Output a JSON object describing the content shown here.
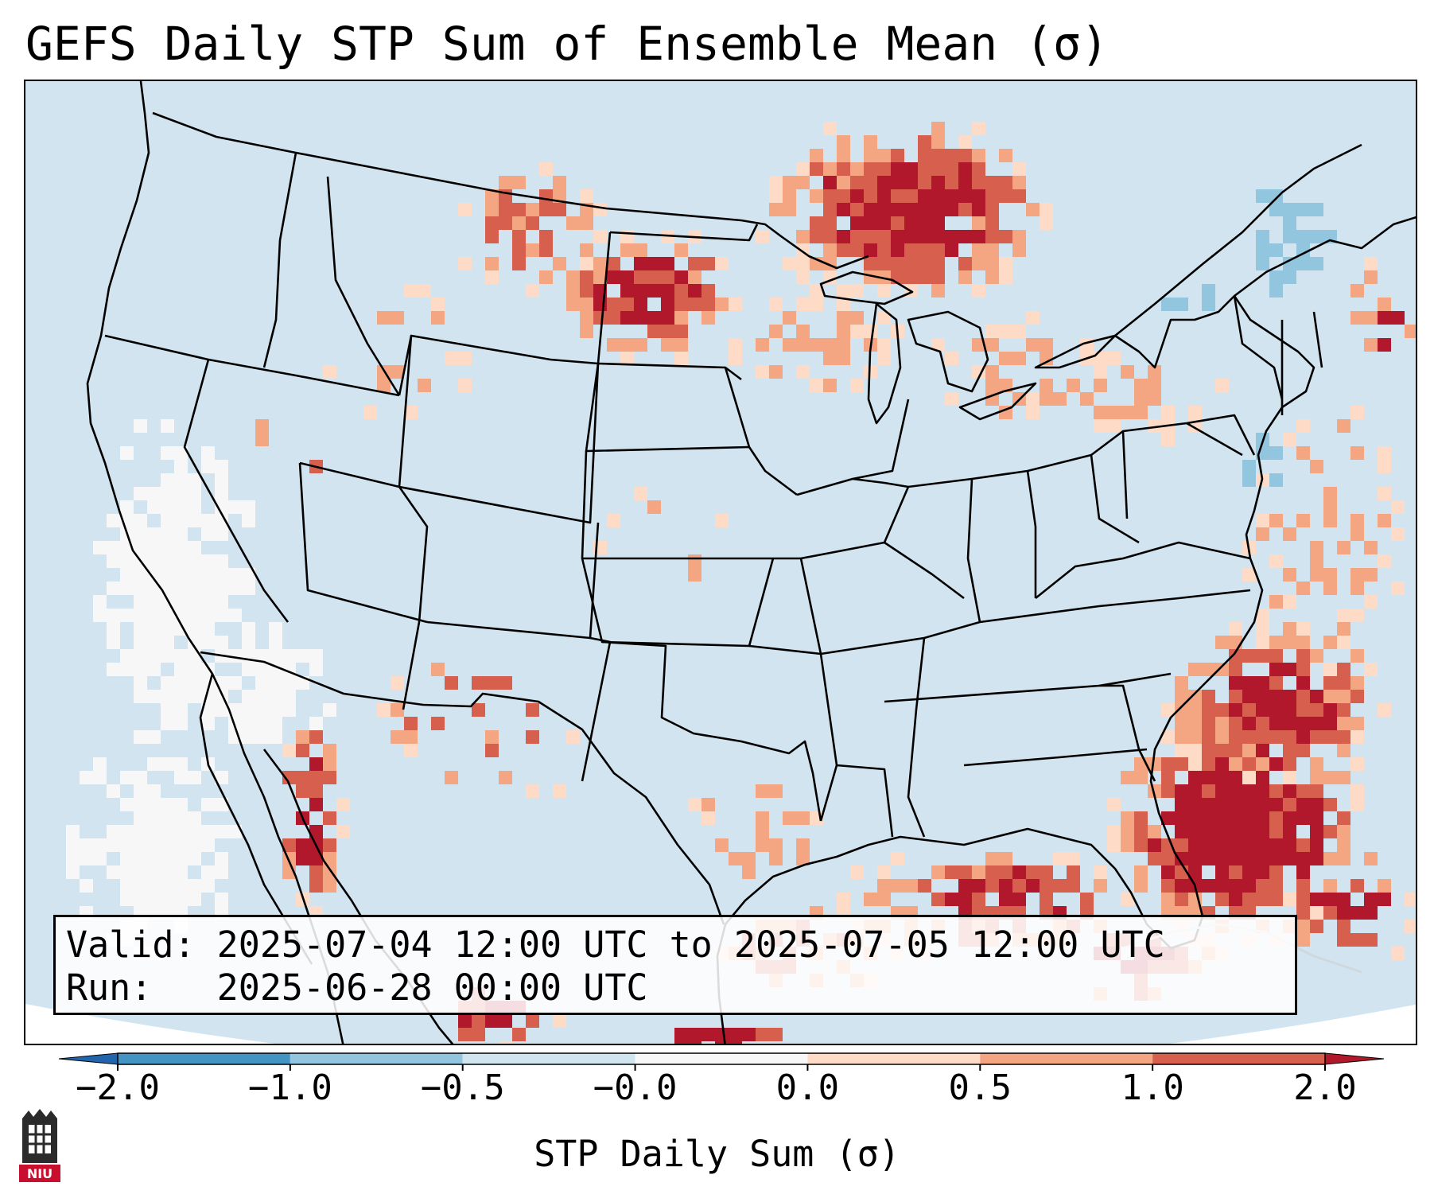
{
  "title": "GEFS Daily STP Sum of Ensemble Mean (σ)",
  "info": {
    "valid_label": "Valid:",
    "valid_value": "2025-07-04 12:00 UTC to 2025-07-05 12:00 UTC",
    "run_label": "Run:",
    "run_value": "2025-06-28 00:00 UTC"
  },
  "colorbar": {
    "label": "STP Daily Sum (σ)",
    "ticks": [
      "−2.0",
      "−1.0",
      "−0.5",
      "−0.0",
      "0.0",
      "0.5",
      "1.0",
      "2.0"
    ],
    "bin_colors": [
      "#4393c3",
      "#92c5de",
      "#d1e5f0",
      "#f7f7f7",
      "#fddbc7",
      "#f4a582",
      "#d6604d",
      "#b2182b"
    ],
    "under_color": "#2166ac",
    "over_color": "#b2182b"
  },
  "logo": {
    "text": "NIU",
    "color": "#c8102e"
  },
  "chart_data": {
    "type": "heatmap",
    "title": "GEFS Daily STP Sum of Ensemble Mean (σ)",
    "variable": "STP Daily Sum (σ)",
    "levels": [
      -2.0,
      -1.0,
      -0.5,
      -0.0,
      0.0,
      0.5,
      1.0,
      2.0
    ],
    "regions": [
      {
        "name": "Florida peninsula and western Atlantic",
        "category": "1.0 to 2.0+"
      },
      {
        "name": "Southeast US Atlantic coast",
        "category": "0.5 to 2.0"
      },
      {
        "name": "Northern Gulf of Mexico coast",
        "category": "0.5 to 2.0"
      },
      {
        "name": "Northern Minnesota and Ontario",
        "category": "0.5 to 2.0"
      },
      {
        "name": "North Dakota and southern Saskatchewan",
        "category": "0.5 to 2.0"
      },
      {
        "name": "Gulf of California",
        "category": "1.0 to 2.0"
      },
      {
        "name": "Southeast Canada and St. Lawrence",
        "category": "-1.0 to -0.5"
      },
      {
        "name": "Eastern Pacific off California",
        "category": "-0.0 to 0.0"
      }
    ]
  }
}
